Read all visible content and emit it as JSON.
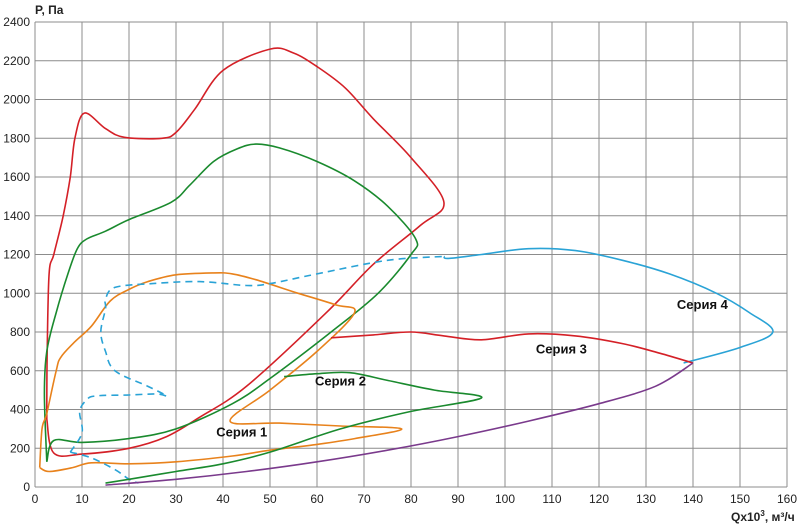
{
  "chart_data": {
    "type": "line",
    "ylabel": "P, Па",
    "xlabel_main": "Qx10",
    "xlabel_sup": "3",
    "xlabel_unit": ", м³/ч",
    "xlim": [
      0,
      160
    ],
    "ylim": [
      0,
      2400
    ],
    "xticks": [
      0,
      10,
      20,
      30,
      40,
      50,
      60,
      70,
      80,
      90,
      100,
      110,
      120,
      130,
      140,
      150,
      160
    ],
    "yticks": [
      0,
      200,
      400,
      600,
      800,
      1000,
      1200,
      1400,
      1600,
      1800,
      2000,
      2200,
      2400
    ],
    "grid": true,
    "colors": {
      "red": "#d42027",
      "green": "#1a8a2e",
      "orange": "#e8821c",
      "blue": "#2aa3d6",
      "purple": "#7a3a8c",
      "grid": "#8c8c8c"
    },
    "series": [
      {
        "name": "",
        "color": "#d42027",
        "style": "solid",
        "points": [
          [
            2.5,
            350
          ],
          [
            2.6,
            700
          ],
          [
            3,
            1100
          ],
          [
            4,
            1200
          ],
          [
            6,
            1400
          ],
          [
            7.5,
            1600
          ],
          [
            8.5,
            1800
          ],
          [
            10.5,
            1930
          ],
          [
            15,
            1850
          ],
          [
            19,
            1805
          ],
          [
            27,
            1800
          ],
          [
            30,
            1830
          ],
          [
            34,
            1950
          ],
          [
            40,
            2150
          ],
          [
            50,
            2260
          ],
          [
            55,
            2240
          ],
          [
            60,
            2170
          ],
          [
            66,
            2060
          ],
          [
            72,
            1900
          ],
          [
            80,
            1700
          ],
          [
            87,
            1470
          ],
          [
            82,
            1350
          ],
          [
            72,
            1150
          ],
          [
            62,
            900
          ],
          [
            45,
            520
          ],
          [
            35,
            360
          ],
          [
            28,
            260
          ],
          [
            20,
            200
          ],
          [
            10,
            170
          ],
          [
            4,
            175
          ],
          [
            2.5,
            350
          ]
        ]
      },
      {
        "name": "",
        "color": "#1a8a2e",
        "style": "solid",
        "points": [
          [
            2.5,
            130
          ],
          [
            2,
            480
          ],
          [
            2.5,
            700
          ],
          [
            4.5,
            900
          ],
          [
            7,
            1100
          ],
          [
            9,
            1230
          ],
          [
            11,
            1280
          ],
          [
            15,
            1320
          ],
          [
            20,
            1380
          ],
          [
            29,
            1470
          ],
          [
            33,
            1560
          ],
          [
            38,
            1680
          ],
          [
            43,
            1745
          ],
          [
            47,
            1770
          ],
          [
            52,
            1750
          ],
          [
            60,
            1680
          ],
          [
            68,
            1580
          ],
          [
            75,
            1450
          ],
          [
            81,
            1280
          ],
          [
            80,
            1200
          ],
          [
            73,
            1000
          ],
          [
            63,
            800
          ],
          [
            50,
            560
          ],
          [
            42,
            430
          ],
          [
            30,
            300
          ],
          [
            20,
            250
          ],
          [
            10,
            230
          ],
          [
            4,
            240
          ],
          [
            2.5,
            130
          ]
        ]
      },
      {
        "name": "",
        "color": "#e8821c",
        "style": "solid",
        "points": [
          [
            1,
            100
          ],
          [
            1.5,
            300
          ],
          [
            2.5,
            380
          ],
          [
            4.5,
            600
          ],
          [
            5.5,
            670
          ],
          [
            8.5,
            750
          ],
          [
            12,
            830
          ],
          [
            16,
            960
          ],
          [
            20,
            1020
          ],
          [
            24,
            1060
          ],
          [
            30,
            1095
          ],
          [
            38,
            1105
          ],
          [
            42,
            1100
          ],
          [
            47,
            1070
          ],
          [
            56,
            1000
          ],
          [
            64,
            940
          ],
          [
            68,
            900
          ],
          [
            60,
            700
          ],
          [
            50,
            500
          ],
          [
            41.5,
            340
          ],
          [
            52,
            330
          ],
          [
            65,
            315
          ],
          [
            78,
            300
          ],
          [
            68,
            250
          ],
          [
            60,
            220
          ],
          [
            50,
            190
          ],
          [
            42,
            160
          ],
          [
            30,
            130
          ],
          [
            20,
            120
          ],
          [
            12,
            125
          ],
          [
            8,
            100
          ],
          [
            3,
            80
          ],
          [
            1,
            100
          ]
        ]
      },
      {
        "name": "",
        "color": "#2aa3d6",
        "style": "dashed",
        "points": [
          [
            7.5,
            180
          ],
          [
            10,
            280
          ],
          [
            9.5,
            390
          ],
          [
            11,
            450
          ],
          [
            13,
            470
          ],
          [
            20,
            475
          ],
          [
            26,
            480
          ],
          [
            28,
            470
          ],
          [
            24,
            520
          ],
          [
            17,
            600
          ],
          [
            15,
            700
          ],
          [
            14,
            800
          ],
          [
            15,
            920
          ],
          [
            15,
            970
          ],
          [
            17,
            1030
          ],
          [
            25,
            1050
          ],
          [
            35,
            1060
          ],
          [
            45,
            1040
          ],
          [
            50,
            1050
          ],
          [
            60,
            1100
          ],
          [
            75,
            1170
          ],
          [
            87,
            1190
          ]
        ]
      },
      {
        "name": "",
        "color": "#2aa3d6",
        "style": "solid",
        "points": [
          [
            87,
            1190
          ],
          [
            88,
            1180
          ],
          [
            95,
            1200
          ],
          [
            105,
            1230
          ],
          [
            115,
            1220
          ],
          [
            125,
            1170
          ],
          [
            135,
            1100
          ],
          [
            145,
            1000
          ],
          [
            152,
            900
          ],
          [
            157,
            800
          ],
          [
            150,
            720
          ],
          [
            138,
            640
          ]
        ]
      },
      {
        "name": "",
        "color": "#2aa3d6",
        "style": "dashed",
        "points": [
          [
            7.5,
            180
          ],
          [
            12,
            150
          ],
          [
            17,
            90
          ],
          [
            20,
            40
          ],
          [
            22,
            20
          ]
        ]
      },
      {
        "name": "",
        "color": "#d42027",
        "style": "solid",
        "points": [
          [
            63,
            770
          ],
          [
            72,
            785
          ],
          [
            80,
            800
          ],
          [
            87,
            780
          ],
          [
            95,
            760
          ],
          [
            105,
            790
          ],
          [
            115,
            780
          ],
          [
            125,
            740
          ],
          [
            133,
            690
          ],
          [
            140,
            640
          ]
        ]
      },
      {
        "name": "",
        "color": "#1a8a2e",
        "style": "solid",
        "points": [
          [
            53,
            570
          ],
          [
            60,
            585
          ],
          [
            67,
            590
          ],
          [
            75,
            550
          ],
          [
            85,
            500
          ],
          [
            95,
            460
          ],
          [
            80,
            390
          ],
          [
            65,
            300
          ],
          [
            50,
            180
          ],
          [
            40,
            120
          ],
          [
            30,
            80
          ],
          [
            20,
            40
          ],
          [
            15,
            20
          ]
        ]
      },
      {
        "name": "",
        "color": "#7a3a8c",
        "style": "solid",
        "points": [
          [
            15,
            10
          ],
          [
            30,
            40
          ],
          [
            45,
            80
          ],
          [
            60,
            130
          ],
          [
            75,
            190
          ],
          [
            90,
            260
          ],
          [
            105,
            340
          ],
          [
            120,
            430
          ],
          [
            132,
            520
          ],
          [
            140,
            640
          ]
        ]
      }
    ],
    "annotations": [
      {
        "text": "Серия 4",
        "x": 142,
        "y": 920
      },
      {
        "text": "Серия 3",
        "x": 112,
        "y": 690
      },
      {
        "text": "Серия 2",
        "x": 65,
        "y": 525
      },
      {
        "text": "Серия 1",
        "x": 44,
        "y": 260
      }
    ]
  }
}
